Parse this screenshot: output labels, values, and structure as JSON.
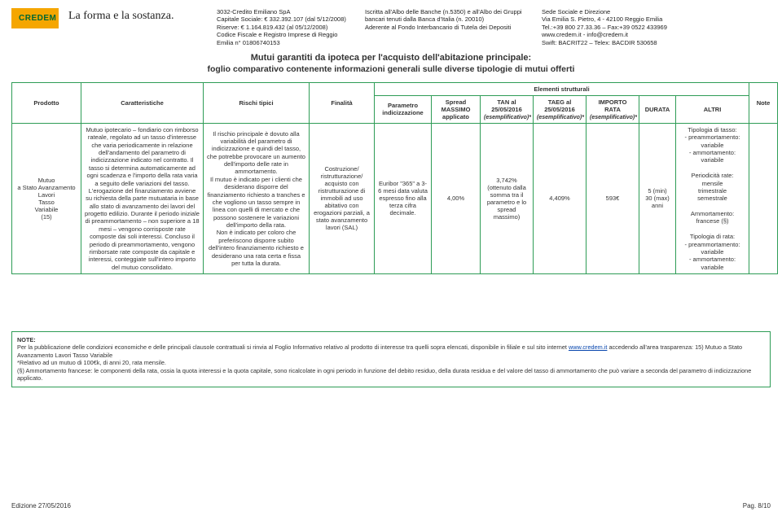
{
  "logo": "CREDEM",
  "tagline": "La forma e la sostanza.",
  "header": {
    "col1": "3032-Credito Emiliano SpA\nCapitale Sociale: € 332.392.107 (dal 5/12/2008)\nRiserve: € 1.164.819.432 (al 05/12/2008)\nCodice Fiscale e Registro Imprese di Reggio Emilia n° 01806740153",
    "col2": "Iscritta all'Albo delle Banche (n.5350) e all'Albo dei Gruppi bancari tenuti dalla Banca d'Italia (n. 20010)\nAderente al Fondo Interbancario di Tutela dei Depositi",
    "col3": "Sede Sociale e Direzione\nVia Emilia S. Pietro, 4 - 42100 Reggio Emilia\nTel.:+39 800 27.33.36 – Fax:+39 0522 433969\nwww.credem.it - info@credem.it\nSwift: BACRIT22 – Telex: BACDIR 530658"
  },
  "title": "Mutui garantiti da ipoteca per l'acquisto dell'abitazione principale:",
  "subtitle": "foglio comparativo contenente informazioni generali sulle diverse tipologie di mutui offerti",
  "columns": {
    "prodotto": "Prodotto",
    "caratteristiche": "Caratteristiche",
    "rischi": "Rischi tipici",
    "finalita": "Finalità",
    "elementi": "Elementi strutturali",
    "parametro": "Parametro indicizzazione",
    "spread": "Spread MASSIMO applicato",
    "tan": "TAN al 25/05/2016",
    "tan_sub": "(esemplificativo)*",
    "taeg": "TAEG al 25/05/2016",
    "taeg_sub": "(esemplificativo)*",
    "importo": "IMPORTO RATA",
    "importo_sub": "(esemplificativo)*",
    "durata": "DURATA",
    "altri": "ALTRI",
    "note": "Note"
  },
  "row": {
    "prodotto": "Mutuo\na Stato Avanzamento Lavori\nTasso\nVariabile\n(15)",
    "caratteristiche": "Mutuo ipotecario – fondiario con rimborso rateale, regolato ad un tasso d'interesse che varia periodicamente in relazione dell'andamento del parametro di indicizzazione indicato nel contratto. Il tasso si determina automaticamente ad ogni scadenza e l'importo della rata varia a seguito delle variazioni del tasso.\nL'erogazione del finanziamento avviene su richiesta della parte mutuataria in base allo stato di avanzamento dei lavori del progetto edilizio. Durante il periodo iniziale di preammortamento – non superiore a 18 mesi – vengono corrisposte rate composte dai soli interessi. Concluso il periodo di preammortamento, vengono rimborsate rate composte da capitale e interessi, conteggiate sull'intero importo del mutuo consolidato.",
    "rischi": "Il rischio principale è dovuto alla variabilità del parametro di indicizzazione e quindi del tasso, che potrebbe provocare un aumento dell'importo delle rate in ammortamento.\nIl mutuo è indicato per i clienti che desiderano disporre del finanziamento richiesto a tranches e che vogliono un tasso sempre in linea con quelli di mercato e che possono sostenere le variazioni dell'importo della rata.\nNon è indicato per coloro che preferiscono disporre subito dell'intero finanziamento richiesto e desiderano una rata certa e fissa per tutta la durata.",
    "finalita": "Costruzione/ ristrutturazione/ acquisto con ristrutturazione di immobili ad uso abitativo con erogazioni parziali, a stato avanzamento lavori (SAL)",
    "parametro": "Euribor \"365\" a 3-6 mesi data valuta espresso fino alla terza cifra decimale.",
    "spread": "4,00%",
    "tan": "3,742%\n(ottenuto dalla somma tra il parametro e lo spread massimo)",
    "taeg": "4,409%",
    "importo": "593€",
    "durata": "5 (min)\n30 (max)\nanni",
    "altri": "Tipologia di tasso:\n- preammortamento: variabile\n- ammortamento: variabile\n\nPeriodicità rate:\nmensile\ntrimestrale\nsemestrale\n\nAmmortamento: francese (§)\n\nTipologia di rata:\n- preammortamento: variabile\n- ammortamento: variabile"
  },
  "notebox": {
    "label": "NOTE:",
    "line1a": "Per la pubblicazione delle condizioni economiche e delle principali clausole contrattuali si rinvia al Foglio Informativo relativo al prodotto di interesse tra quelli sopra elencati, disponibile in filiale e sul sito internet ",
    "link": "www.credem.it",
    "line1b": " accedendo all'area trasparenza: 15) Mutuo a Stato Avanzamento Lavori Tasso Variabile",
    "line2": "*Relativo ad un mutuo di 100€k, di anni 20, rata mensile.",
    "line3": "(§) Ammortamento francese: le componenti della rata, ossia la quota interessi e la quota capitale, sono ricalcolate in ogni periodo in funzione del debito residuo, della durata residua e del valore del tasso di ammortamento che può variare a seconda del parametro di indicizzazione applicato."
  },
  "footer": {
    "left": "Edizione 27/05/2016",
    "right": "Pag. 8/10"
  }
}
